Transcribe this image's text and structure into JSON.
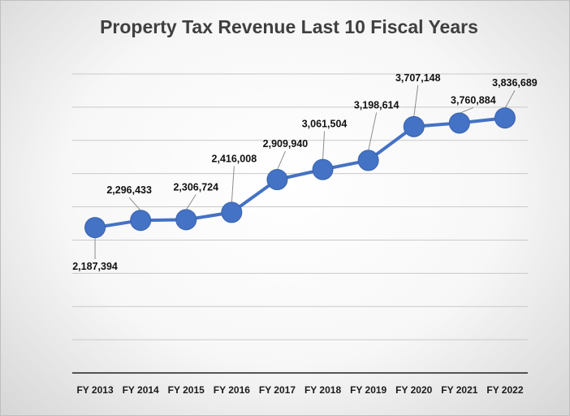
{
  "chart_data": {
    "type": "line",
    "title": "Property Tax Revenue Last 10 Fiscal Years",
    "categories": [
      "FY 2013",
      "FY 2014",
      "FY 2015",
      "FY 2016",
      "FY 2017",
      "FY 2018",
      "FY 2019",
      "FY 2020",
      "FY 2021",
      "FY 2022"
    ],
    "series": [
      {
        "name": "Property Tax Revenue",
        "values": [
          2187394,
          2296433,
          2306724,
          2416008,
          2909940,
          3061504,
          3198614,
          3707148,
          3760884,
          3836689
        ],
        "labels": [
          "2,187,394",
          "2,296,433",
          "2,306,724",
          "2,416,008",
          "2,909,940",
          "3,061,504",
          "3,198,614",
          "3,707,148",
          "3,760,884",
          "3,836,689"
        ],
        "color": "#4472c4"
      }
    ],
    "xlabel": "",
    "ylabel": "",
    "ylim": [
      0,
      4500000
    ],
    "y_gridline_step": 500000,
    "y_tick_labels_shown": false,
    "grid": true,
    "legend": "none"
  }
}
